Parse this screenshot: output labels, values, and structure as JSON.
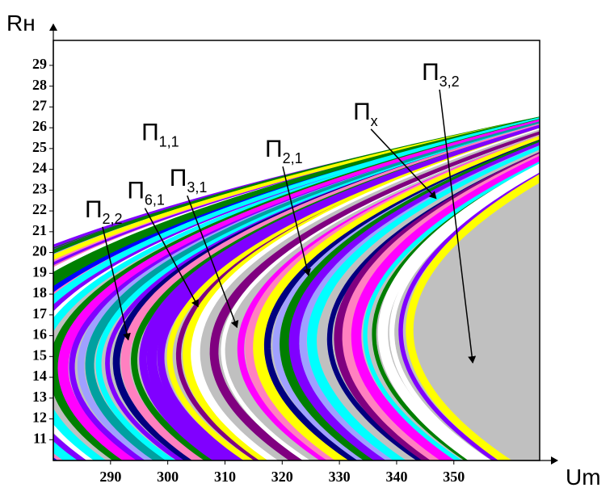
{
  "chart_data": {
    "type": "region-map",
    "x_label": "Um",
    "y_label": "Rн",
    "xlim": [
      280,
      365
    ],
    "ylim": [
      10,
      30.2
    ],
    "xticks": [
      290,
      300,
      310,
      320,
      330,
      340,
      350
    ],
    "yticks": [
      11,
      12,
      13,
      14,
      15,
      16,
      17,
      18,
      19,
      20,
      21,
      22,
      23,
      24,
      25,
      26,
      27,
      28,
      29
    ],
    "annotations": [
      {
        "text": "П",
        "sub": "1,1",
        "x": 295.4,
        "y": 25.4
      },
      {
        "text": "П",
        "sub": "2,2",
        "x": 285.5,
        "y": 21.7,
        "target": [
          293.1,
          15.8
        ]
      },
      {
        "text": "П",
        "sub": "6,1",
        "x": 292.9,
        "y": 22.6,
        "target": [
          305.3,
          17.4
        ]
      },
      {
        "text": "П",
        "sub": "3,1",
        "x": 300.3,
        "y": 23.2,
        "target": [
          312.1,
          16.4
        ]
      },
      {
        "text": "П",
        "sub": "2,1",
        "x": 317,
        "y": 24.6,
        "target": [
          324.6,
          18.9
        ]
      },
      {
        "text": "П",
        "sub": "x",
        "x": 332.4,
        "y": 26.4,
        "target": [
          346.9,
          22.6
        ]
      },
      {
        "text": "П",
        "sub": "3,2",
        "x": 344.4,
        "y": 28.3,
        "target": [
          353.3,
          14.7
        ]
      }
    ]
  }
}
